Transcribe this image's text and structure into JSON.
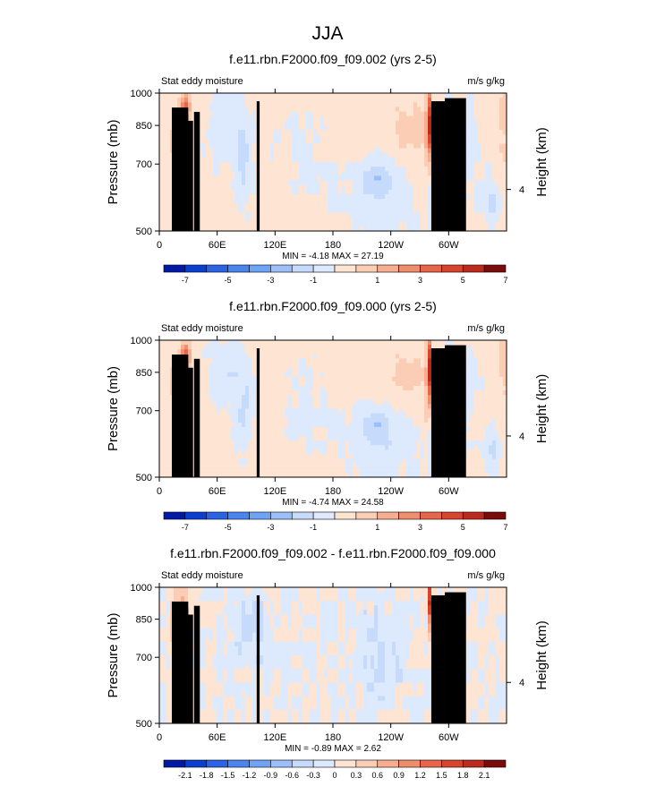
{
  "page_title": "JJA",
  "colors": {
    "blue_ramp": [
      "#001aa6",
      "#0a3fd0",
      "#2a64e4",
      "#4a85ef",
      "#6fa3f6",
      "#9cbff9",
      "#c6dafb",
      "#dde9fd"
    ],
    "red_ramp": [
      "#fde4d3",
      "#fbcdb4",
      "#f7ad90",
      "#f08d6c",
      "#e76548",
      "#d8432e",
      "#bd2a1d",
      "#7a0b0b"
    ],
    "topography": "#000000"
  },
  "chart_data": [
    {
      "type": "heatmap",
      "title": "f.e11.rbn.F2000.f09_f09.002 (yrs 2-5)",
      "left_label": "Stat eddy moisture",
      "right_label": "m/s g/kg",
      "ylabel": "Pressure (mb)",
      "y2label": "Height (km)",
      "x_ticks": [
        "0",
        "60E",
        "120E",
        "180",
        "120W",
        "60W"
      ],
      "x_tick_lon": [
        0,
        60,
        120,
        180,
        240,
        300
      ],
      "xlim": [
        0,
        360
      ],
      "y_ticks": [
        "500",
        "700",
        "850",
        "1000"
      ],
      "y_tick_p": [
        500,
        700,
        850,
        1000
      ],
      "ylim": [
        1000,
        500
      ],
      "y_scale": "log",
      "y2_ticks": [
        "4"
      ],
      "y2_tick_p": [
        616
      ],
      "stats": "MIN = -4.18   MAX = 27.19",
      "colorbar_labels": [
        "-7",
        "-5",
        "-3",
        "-1",
        "1",
        "3",
        "5",
        "7"
      ],
      "colorbar_levels": [
        -8,
        -7,
        -6,
        -5,
        -4,
        -3,
        -2,
        -1,
        0,
        1,
        2,
        3,
        4,
        5,
        6,
        7,
        8
      ],
      "grid": false
    },
    {
      "type": "heatmap",
      "title": "f.e11.rbn.F2000.f09_f09.000 (yrs 2-5)",
      "left_label": "Stat eddy moisture",
      "right_label": "m/s g/kg",
      "ylabel": "Pressure (mb)",
      "y2label": "Height (km)",
      "x_ticks": [
        "0",
        "60E",
        "120E",
        "180",
        "120W",
        "60W"
      ],
      "x_tick_lon": [
        0,
        60,
        120,
        180,
        240,
        300
      ],
      "xlim": [
        0,
        360
      ],
      "y_ticks": [
        "500",
        "700",
        "850",
        "1000"
      ],
      "y_tick_p": [
        500,
        700,
        850,
        1000
      ],
      "ylim": [
        1000,
        500
      ],
      "y_scale": "log",
      "y2_ticks": [
        "4"
      ],
      "y2_tick_p": [
        616
      ],
      "stats": "MIN = -4.74   MAX = 24.58",
      "colorbar_labels": [
        "-7",
        "-5",
        "-3",
        "-1",
        "1",
        "3",
        "5",
        "7"
      ],
      "colorbar_levels": [
        -8,
        -7,
        -6,
        -5,
        -4,
        -3,
        -2,
        -1,
        0,
        1,
        2,
        3,
        4,
        5,
        6,
        7,
        8
      ],
      "grid": false
    },
    {
      "type": "heatmap",
      "title": "f.e11.rbn.F2000.f09_f09.002 - f.e11.rbn.F2000.f09_f09.000",
      "left_label": "Stat eddy moisture",
      "right_label": "m/s g/kg",
      "ylabel": "Pressure (mb)",
      "y2label": "Height (km)",
      "x_ticks": [
        "0",
        "60E",
        "120E",
        "180",
        "120W",
        "60W"
      ],
      "x_tick_lon": [
        0,
        60,
        120,
        180,
        240,
        300
      ],
      "xlim": [
        0,
        360
      ],
      "y_ticks": [
        "500",
        "700",
        "850",
        "1000"
      ],
      "y_tick_p": [
        500,
        700,
        850,
        1000
      ],
      "ylim": [
        1000,
        500
      ],
      "y_scale": "log",
      "y2_ticks": [
        "4"
      ],
      "y2_tick_p": [
        616
      ],
      "stats": "MIN = -0.89   MAX = 2.62",
      "colorbar_labels": [
        "-2.1",
        "-1.8",
        "-1.5",
        "-1.2",
        "-0.9",
        "-0.6",
        "-0.3",
        "0",
        "0.3",
        "0.6",
        "0.9",
        "1.2",
        "1.5",
        "1.8",
        "2.1"
      ],
      "colorbar_levels": [
        -2.4,
        -2.1,
        -1.8,
        -1.5,
        -1.2,
        -0.9,
        -0.6,
        -0.3,
        0,
        0.3,
        0.6,
        0.9,
        1.2,
        1.5,
        1.8,
        2.1,
        2.4
      ],
      "grid": false
    }
  ]
}
